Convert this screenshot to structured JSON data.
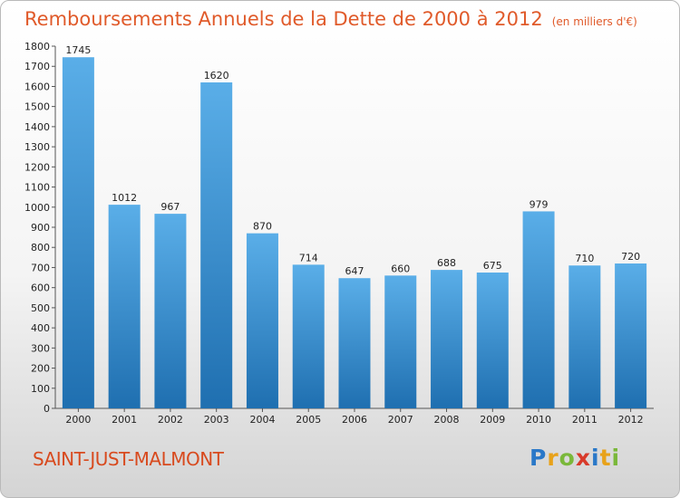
{
  "chart_data": {
    "type": "bar",
    "title": "Remboursements Annuels de la Dette de 2000 à 2012",
    "unit": "(en milliers d'€)",
    "categories": [
      "2000",
      "2001",
      "2002",
      "2003",
      "2004",
      "2005",
      "2006",
      "2007",
      "2008",
      "2009",
      "2010",
      "2011",
      "2012"
    ],
    "values": [
      1745,
      1012,
      967,
      1620,
      870,
      714,
      647,
      660,
      688,
      675,
      979,
      710,
      720
    ],
    "ylim": [
      0,
      1800
    ],
    "yticks": [
      0,
      100,
      200,
      300,
      400,
      500,
      600,
      700,
      800,
      900,
      1000,
      1100,
      1200,
      1300,
      1400,
      1500,
      1600,
      1700,
      1800
    ],
    "grid": false,
    "bar_color_top": "#5aaee8",
    "bar_color_bottom": "#1f6fb0"
  },
  "commune": "SAINT-JUST-MALMONT",
  "logo": {
    "letters": [
      "P",
      "r",
      "o",
      "x",
      "i",
      "t",
      "i"
    ],
    "colors": [
      "#2a78c8",
      "#e8a21a",
      "#7ab83a",
      "#d83a2a",
      "#2a78c8",
      "#e8a21a",
      "#7ab83a"
    ]
  }
}
